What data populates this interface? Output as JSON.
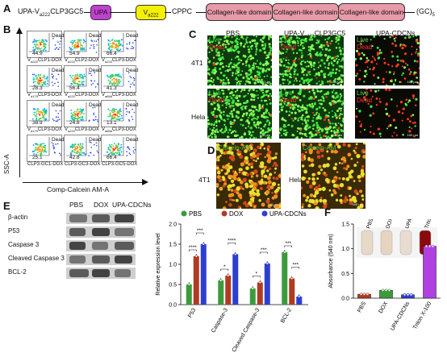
{
  "panel_a": {
    "letter": "A",
    "prefix": "UPA-V",
    "prefix_sub": "a222",
    "prefix_rest": "CLP3GC5",
    "box_upa": "UPA",
    "box_v": "V",
    "box_v_sub": "a222",
    "cppc": "CPPC",
    "domains": [
      "Collagen-like domain",
      "Collagen-like domain",
      "Collagen-like domain"
    ],
    "suffix": "(GC)",
    "suffix_sub": "5",
    "colors": {
      "upa": "#c040d0",
      "v": "#f4f000",
      "domain": "#e89aa8"
    }
  },
  "panel_b": {
    "letter": "B",
    "y_axis": "SSC-A",
    "x_axis": "Comp-Calcein AM-A",
    "gate_label": "Dead",
    "cells": [
      {
        "pct": "44.9",
        "cap": "V",
        "cap_sub": "a222",
        "cap_rest": "CLP1-DOX"
      },
      {
        "pct": "54.9",
        "cap": "V",
        "cap_sub": "a222",
        "cap_rest": "CLP2-DOX"
      },
      {
        "pct": "66.4",
        "cap": "V",
        "cap_sub": "a222",
        "cap_rest": "CLP3-DOX"
      },
      {
        "pct": "28.3",
        "cap": "V",
        "cap_sub": "a179",
        "cap_rest": "CLP3-DOX"
      },
      {
        "pct": "56.4",
        "cap": "V",
        "cap_sub": "a222",
        "cap_rest": "CLP3-DOX"
      },
      {
        "pct": "41.3",
        "cap": "V",
        "cap_sub": "a666",
        "cap_rest": "CLP3-DOX"
      },
      {
        "pct": "38.9",
        "cap": "V",
        "cap_sub": "a179",
        "cap_rest": "CLP3-DOX"
      },
      {
        "pct": "24.8",
        "cap": "V",
        "cap_sub": "a222",
        "cap_rest": "CLP3-DOX"
      },
      {
        "pct": "13.1",
        "cap": "V",
        "cap_sub": "a666",
        "cap_rest": "CLP3-DOX"
      },
      {
        "pct": "25.1",
        "cap": "",
        "cap_sub": "",
        "cap_rest": "CLP3-GC1-DOX"
      },
      {
        "pct": "42.8",
        "cap": "",
        "cap_sub": "",
        "cap_rest": "CLP3-GC3-DOX"
      },
      {
        "pct": "66.4",
        "cap": "",
        "cap_sub": "",
        "cap_rest": "CLP3-GC5-DOX"
      }
    ]
  },
  "panel_c": {
    "letter": "C",
    "columns": [
      "PBS",
      "UPA-V",
      "UPA-CDCNs"
    ],
    "col2_sub": "a222",
    "col2_rest": "CLP3GC5",
    "rows": [
      "4T1",
      "Hela"
    ],
    "live": "Live",
    "dead": "Dead",
    "scale": "100 μm"
  },
  "panel_d": {
    "letter": "D",
    "rows": [
      "4T1",
      "Hela"
    ],
    "stain": "Calcein-AM",
    "scale": "100 μm"
  },
  "panel_e": {
    "letter": "E",
    "blot_cols": [
      "PBS",
      "DOX",
      "UPA-CDCNs"
    ],
    "blot_rows": [
      "β-actin",
      "P53",
      "Caspase 3",
      "Cleaved Caspase 3",
      "BCL-2"
    ]
  },
  "chart_data": [
    {
      "type": "bar",
      "panel": "E",
      "ylabel": "Relative expression level",
      "ylim": [
        0,
        2.0
      ],
      "yticks": [
        0,
        0.5,
        1.0,
        1.5,
        2.0
      ],
      "categories": [
        "P53",
        "Caspase-3",
        "Cleaved Caspase-3",
        "BCL-2"
      ],
      "series": [
        {
          "name": "PBS",
          "color": "#3c9a3c",
          "values": [
            0.5,
            0.6,
            0.4,
            1.3
          ]
        },
        {
          "name": "DOX",
          "color": "#b03a22",
          "values": [
            1.2,
            0.72,
            0.55,
            0.65
          ]
        },
        {
          "name": "UPA-CDCNs",
          "color": "#2d3fd0",
          "values": [
            1.5,
            1.25,
            1.02,
            0.2
          ]
        }
      ],
      "significance": [
        "****",
        "***",
        "*",
        "****",
        "*",
        "***",
        "***",
        "***"
      ]
    },
    {
      "type": "bar",
      "panel": "F",
      "ylabel": "Absorbance (540 nm)",
      "ylim": [
        0,
        1.5
      ],
      "yticks": [
        0.0,
        0.5,
        1.0,
        1.5
      ],
      "categories": [
        "PBS",
        "DOX",
        "UPA-CDCNs",
        "Triton X-100"
      ],
      "values": [
        0.08,
        0.16,
        0.07,
        1.05
      ],
      "colors": [
        "#b03a22",
        "#3c9a3c",
        "#2d3fd0",
        "#b040e0"
      ]
    }
  ],
  "panel_f": {
    "letter": "F",
    "tube_labels": [
      "PBS",
      "DOX",
      "UPA-CDCNs",
      "Triton X-100"
    ]
  }
}
